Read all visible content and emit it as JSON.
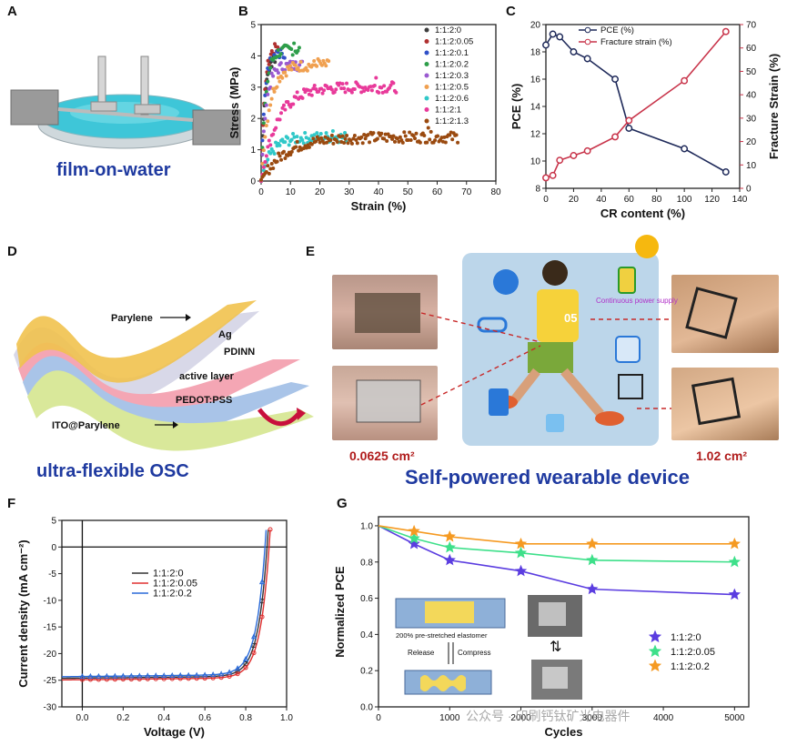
{
  "panels": {
    "A": {
      "letter": "A",
      "caption": "film-on-water"
    },
    "B": {
      "letter": "B"
    },
    "C": {
      "letter": "C"
    },
    "D": {
      "letter": "D",
      "caption": "ultra-flexible OSC",
      "layers": [
        "Parylene",
        "Ag",
        "PDINN",
        "active layer",
        "PEDOT:PSS",
        "ITO@Parylene"
      ]
    },
    "E": {
      "letter": "E",
      "caption": "Self-powered wearable device",
      "area_small": "0.0625 cm²",
      "area_large": "1.02 cm²",
      "badge": "Continuous power supply",
      "shirt_number": "05"
    },
    "F": {
      "letter": "F"
    },
    "G": {
      "letter": "G",
      "inset_stretch": "200% pre-stretched elastomer",
      "inset_release": "Release",
      "inset_compress": "Compress"
    }
  },
  "watermark": "公众号 · 印刷钙钛矿光电器件",
  "colors": {
    "caption_blue": "#1f3aa0",
    "area_red": "#b01c1c",
    "pce_line": "#1f2a5a",
    "strain_line": "#c8344a",
    "f_black": "#333333",
    "f_red": "#e03030",
    "f_blue": "#2a6ad8",
    "g_purple": "#5b3de0",
    "g_green": "#3ee08a",
    "g_orange": "#f59a22"
  },
  "chart_data": [
    {
      "type": "scatter",
      "panel": "B",
      "xlabel": "Strain (%)",
      "ylabel": "Stress (MPa)",
      "xlim": [
        0,
        80
      ],
      "ylim": [
        0,
        5
      ],
      "xticks": [
        "0",
        "10",
        "20",
        "30",
        "40",
        "50",
        "60",
        "70",
        "80"
      ],
      "yticks": [
        "0",
        "1",
        "2",
        "3",
        "4",
        "5"
      ],
      "series": [
        {
          "name": "1:1:2:0",
          "color": "#3d3d3d",
          "max_strain": 5,
          "peak_stress": 4.0,
          "plateau": 4.0
        },
        {
          "name": "1:1:2:0.05",
          "color": "#b03030",
          "max_strain": 6,
          "peak_stress": 4.3,
          "plateau": 4.3
        },
        {
          "name": "1:1:2:0.1",
          "color": "#3050c8",
          "max_strain": 8,
          "peak_stress": 4.2,
          "plateau": 4.1
        },
        {
          "name": "1:1:2:0.2",
          "color": "#2e9e4a",
          "max_strain": 13,
          "peak_stress": 4.4,
          "plateau": 4.2
        },
        {
          "name": "1:1:2:0.3",
          "color": "#9a5ad0",
          "max_strain": 14,
          "peak_stress": 3.8,
          "plateau": 3.7
        },
        {
          "name": "1:1:2:0.5",
          "color": "#f0a050",
          "max_strain": 23,
          "peak_stress": 3.9,
          "plateau": 3.7
        },
        {
          "name": "1:1:2:0.6",
          "color": "#30c8c8",
          "max_strain": 29,
          "peak_stress": 1.6,
          "plateau": 1.4
        },
        {
          "name": "1:1:2:1",
          "color": "#e83a9a",
          "max_strain": 46,
          "peak_stress": 3.3,
          "plateau": 3.0
        },
        {
          "name": "1:1:2:1.3",
          "color": "#9a4a10",
          "max_strain": 67,
          "peak_stress": 1.7,
          "plateau": 1.4
        }
      ]
    },
    {
      "type": "line",
      "panel": "C",
      "xlabel": "CR content (%)",
      "ylabel": "PCE (%)",
      "y2label": "Fracture Strain (%)",
      "xlim": [
        0,
        140
      ],
      "ylim": [
        8,
        20
      ],
      "y2lim": [
        0,
        70
      ],
      "xticks": [
        "0",
        "20",
        "40",
        "60",
        "80",
        "100",
        "120",
        "140"
      ],
      "yticks": [
        "8",
        "10",
        "12",
        "14",
        "16",
        "18",
        "20"
      ],
      "y2ticks": [
        "0",
        "10",
        "20",
        "30",
        "40",
        "50",
        "60",
        "70"
      ],
      "x": [
        0,
        5,
        10,
        20,
        30,
        50,
        60,
        100,
        130
      ],
      "series": [
        {
          "name": "PCE (%)",
          "axis": "left",
          "values": [
            18.5,
            19.3,
            19.1,
            18.0,
            17.5,
            16.0,
            12.4,
            10.9,
            9.2
          ]
        },
        {
          "name": "Fracture strain (%)",
          "axis": "right",
          "values": [
            4.5,
            5.5,
            12.0,
            14.0,
            16.0,
            22.0,
            29.0,
            46.0,
            67.0
          ]
        }
      ]
    },
    {
      "type": "line",
      "panel": "F",
      "xlabel": "Voltage (V)",
      "ylabel": "Current density (mA cm⁻²)",
      "xlim": [
        -0.1,
        1.0
      ],
      "ylim": [
        -30,
        5
      ],
      "xticks": [
        "0.0",
        "0.2",
        "0.4",
        "0.6",
        "0.8",
        "1.0"
      ],
      "yticks": [
        "-30",
        "-25",
        "-20",
        "-15",
        "-10",
        "-5",
        "0",
        "5"
      ],
      "series": [
        {
          "name": "1:1:2:0",
          "jsc": -24.6,
          "voc": 0.905
        },
        {
          "name": "1:1:2:0.05",
          "jsc": -24.9,
          "voc": 0.915
        },
        {
          "name": "1:1:2:0.2",
          "jsc": -24.3,
          "voc": 0.895
        }
      ]
    },
    {
      "type": "line",
      "panel": "G",
      "xlabel": "Cycles",
      "ylabel": "Normalized PCE",
      "xlim": [
        0,
        5200
      ],
      "ylim": [
        0.0,
        1.05
      ],
      "xticks": [
        "0",
        "1000",
        "2000",
        "3000",
        "4000",
        "5000"
      ],
      "yticks": [
        "0.0",
        "0.2",
        "0.4",
        "0.6",
        "0.8",
        "1.0"
      ],
      "x": [
        0,
        500,
        1000,
        2000,
        3000,
        5000
      ],
      "series": [
        {
          "name": "1:1:2:0",
          "values": [
            1.0,
            0.9,
            0.81,
            0.75,
            0.65,
            0.62
          ]
        },
        {
          "name": "1:1:2:0.05",
          "values": [
            1.0,
            0.93,
            0.88,
            0.85,
            0.81,
            0.8
          ]
        },
        {
          "name": "1:1:2:0.2",
          "values": [
            1.0,
            0.97,
            0.94,
            0.9,
            0.9,
            0.9
          ]
        }
      ]
    }
  ]
}
